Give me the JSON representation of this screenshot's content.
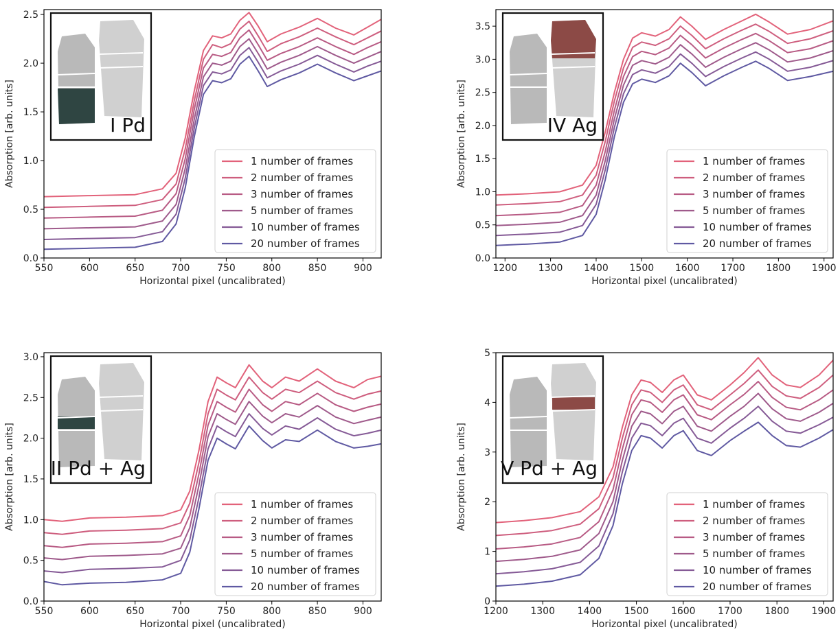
{
  "colors": {
    "series": [
      "#e2627a",
      "#ce5e7e",
      "#b85b84",
      "#9f5a8b",
      "#855a96",
      "#5f59a2"
    ],
    "pd_fill": "#2f4542",
    "ag_fill": "#8c4a46",
    "sample_gray": "#b9b9b9",
    "sample_gray_light": "#d0d0d0"
  },
  "chart_data": [
    {
      "type": "line",
      "inset_label": "I Pd",
      "inset_icon": "pd-sample-icon",
      "xlabel": "Horizontal pixel (uncalibrated)",
      "ylabel": "Absorption [arb. units]",
      "xlim": [
        550,
        920
      ],
      "ylim": [
        0,
        2.55
      ],
      "xticks": [
        "550",
        "600",
        "650",
        "700",
        "750",
        "800",
        "850",
        "900"
      ],
      "yticks": [
        "0.0",
        "0.5",
        "1.0",
        "1.5",
        "2.0",
        "2.5"
      ],
      "legend_position": "lower-right",
      "legend": [
        "1 number of frames",
        "2 number of frames",
        "3 number of frames",
        "5 number of frames",
        "10 number of frames",
        "20 number of frames"
      ],
      "series_x": [
        550,
        600,
        650,
        680,
        695,
        705,
        715,
        725,
        735,
        745,
        755,
        765,
        775,
        785,
        795,
        810,
        830,
        850,
        870,
        890,
        905,
        920
      ],
      "series": [
        {
          "name": "1 number of frames",
          "values": [
            0.63,
            0.64,
            0.65,
            0.71,
            0.87,
            1.23,
            1.72,
            2.13,
            2.28,
            2.26,
            2.3,
            2.44,
            2.52,
            2.38,
            2.22,
            2.3,
            2.37,
            2.46,
            2.36,
            2.29,
            2.37,
            2.45
          ]
        },
        {
          "name": "2 number of frames",
          "values": [
            0.52,
            0.53,
            0.54,
            0.6,
            0.76,
            1.12,
            1.62,
            2.04,
            2.19,
            2.16,
            2.2,
            2.35,
            2.43,
            2.28,
            2.12,
            2.2,
            2.27,
            2.36,
            2.27,
            2.19,
            2.26,
            2.33
          ]
        },
        {
          "name": "3 number of frames",
          "values": [
            0.41,
            0.42,
            0.43,
            0.49,
            0.66,
            1.02,
            1.53,
            1.95,
            2.09,
            2.07,
            2.11,
            2.26,
            2.34,
            2.19,
            2.03,
            2.1,
            2.17,
            2.26,
            2.17,
            2.09,
            2.16,
            2.22
          ]
        },
        {
          "name": "5 number of frames",
          "values": [
            0.3,
            0.31,
            0.32,
            0.38,
            0.55,
            0.92,
            1.43,
            1.86,
            2.0,
            1.98,
            2.02,
            2.17,
            2.25,
            2.1,
            1.94,
            2.01,
            2.08,
            2.17,
            2.08,
            2.0,
            2.06,
            2.12
          ]
        },
        {
          "name": "10 number of frames",
          "values": [
            0.19,
            0.2,
            0.21,
            0.27,
            0.45,
            0.82,
            1.34,
            1.77,
            1.91,
            1.89,
            1.93,
            2.08,
            2.16,
            2.01,
            1.85,
            1.92,
            1.99,
            2.08,
            1.99,
            1.91,
            1.97,
            2.02
          ]
        },
        {
          "name": "20 number of frames",
          "values": [
            0.09,
            0.1,
            0.11,
            0.17,
            0.35,
            0.72,
            1.25,
            1.68,
            1.82,
            1.8,
            1.84,
            1.99,
            2.07,
            1.92,
            1.76,
            1.83,
            1.9,
            1.99,
            1.9,
            1.82,
            1.87,
            1.92
          ]
        }
      ]
    },
    {
      "type": "line",
      "inset_label": "IV Ag",
      "inset_icon": "ag-sample-icon",
      "xlabel": "Horizontal pixel (uncalibrated)",
      "ylabel": "Absorption [arb. units]",
      "xlim": [
        1180,
        1920
      ],
      "ylim": [
        0,
        3.75
      ],
      "xticks": [
        "1200",
        "1300",
        "1400",
        "1500",
        "1600",
        "1700",
        "1800",
        "1900"
      ],
      "yticks": [
        "0.0",
        "0.5",
        "1.0",
        "1.5",
        "2.0",
        "2.5",
        "3.0",
        "3.5"
      ],
      "legend_position": "lower-right",
      "legend": [
        "1 number of frames",
        "2 number of frames",
        "3 number of frames",
        "5 number of frames",
        "10 number of frames",
        "20 number of frames"
      ],
      "series_x": [
        1180,
        1250,
        1320,
        1370,
        1400,
        1420,
        1440,
        1460,
        1480,
        1500,
        1530,
        1560,
        1585,
        1610,
        1640,
        1680,
        1720,
        1750,
        1780,
        1820,
        1870,
        1920
      ],
      "series": [
        {
          "name": "1 number of frames",
          "values": [
            0.95,
            0.97,
            1.0,
            1.1,
            1.4,
            1.9,
            2.5,
            3.0,
            3.32,
            3.4,
            3.35,
            3.45,
            3.64,
            3.5,
            3.3,
            3.45,
            3.58,
            3.68,
            3.56,
            3.38,
            3.45,
            3.58
          ]
        },
        {
          "name": "2 number of frames",
          "values": [
            0.8,
            0.82,
            0.85,
            0.95,
            1.25,
            1.76,
            2.37,
            2.87,
            3.18,
            3.26,
            3.21,
            3.31,
            3.5,
            3.36,
            3.16,
            3.31,
            3.44,
            3.53,
            3.42,
            3.24,
            3.31,
            3.43
          ]
        },
        {
          "name": "3 number of frames",
          "values": [
            0.64,
            0.66,
            0.69,
            0.79,
            1.1,
            1.61,
            2.23,
            2.74,
            3.04,
            3.12,
            3.07,
            3.17,
            3.36,
            3.22,
            3.02,
            3.17,
            3.3,
            3.39,
            3.28,
            3.1,
            3.16,
            3.28
          ]
        },
        {
          "name": "5 number of frames",
          "values": [
            0.49,
            0.51,
            0.54,
            0.64,
            0.95,
            1.47,
            2.1,
            2.61,
            2.91,
            2.98,
            2.93,
            3.03,
            3.22,
            3.08,
            2.88,
            3.03,
            3.16,
            3.25,
            3.14,
            2.96,
            3.02,
            3.13
          ]
        },
        {
          "name": "10 number of frames",
          "values": [
            0.34,
            0.36,
            0.39,
            0.49,
            0.81,
            1.33,
            1.97,
            2.48,
            2.77,
            2.84,
            2.79,
            2.89,
            3.08,
            2.94,
            2.74,
            2.89,
            3.02,
            3.11,
            3.0,
            2.82,
            2.88,
            2.98
          ]
        },
        {
          "name": "20 number of frames",
          "values": [
            0.19,
            0.21,
            0.24,
            0.34,
            0.66,
            1.18,
            1.83,
            2.35,
            2.63,
            2.7,
            2.65,
            2.75,
            2.94,
            2.8,
            2.6,
            2.75,
            2.88,
            2.97,
            2.86,
            2.68,
            2.74,
            2.82
          ]
        }
      ]
    },
    {
      "type": "line",
      "inset_label": "II Pd + Ag",
      "inset_icon": "pd-ag-sample-icon",
      "xlabel": "Horizontal pixel (uncalibrated)",
      "ylabel": "Absorption [arb. units]",
      "xlim": [
        550,
        920
      ],
      "ylim": [
        0,
        3.05
      ],
      "xticks": [
        "550",
        "600",
        "650",
        "700",
        "750",
        "800",
        "850",
        "900"
      ],
      "yticks": [
        "0.0",
        "0.5",
        "1.0",
        "1.5",
        "2.0",
        "2.5",
        "3.0"
      ],
      "legend_position": "lower-right",
      "legend": [
        "1 number of frames",
        "2 number of frames",
        "3 number of frames",
        "5 number of frames",
        "10 number of frames",
        "20 number of frames"
      ],
      "series_x": [
        550,
        570,
        600,
        640,
        680,
        700,
        710,
        720,
        730,
        740,
        750,
        760,
        775,
        790,
        800,
        815,
        830,
        850,
        870,
        890,
        905,
        920
      ],
      "series": [
        {
          "name": "1 number of frames",
          "values": [
            1.0,
            0.98,
            1.02,
            1.03,
            1.05,
            1.12,
            1.35,
            1.85,
            2.45,
            2.75,
            2.68,
            2.62,
            2.9,
            2.7,
            2.62,
            2.75,
            2.7,
            2.85,
            2.7,
            2.62,
            2.72,
            2.76
          ]
        },
        {
          "name": "2 number of frames",
          "values": [
            0.84,
            0.82,
            0.86,
            0.87,
            0.89,
            0.96,
            1.2,
            1.7,
            2.3,
            2.6,
            2.53,
            2.47,
            2.75,
            2.56,
            2.48,
            2.6,
            2.56,
            2.7,
            2.56,
            2.48,
            2.54,
            2.58
          ]
        },
        {
          "name": "3 number of frames",
          "values": [
            0.68,
            0.66,
            0.7,
            0.71,
            0.73,
            0.8,
            1.05,
            1.56,
            2.16,
            2.45,
            2.38,
            2.32,
            2.6,
            2.41,
            2.33,
            2.45,
            2.41,
            2.55,
            2.41,
            2.33,
            2.38,
            2.42
          ]
        },
        {
          "name": "5 number of frames",
          "values": [
            0.53,
            0.51,
            0.55,
            0.56,
            0.58,
            0.65,
            0.9,
            1.42,
            2.02,
            2.3,
            2.23,
            2.17,
            2.45,
            2.27,
            2.19,
            2.3,
            2.26,
            2.4,
            2.26,
            2.18,
            2.22,
            2.26
          ]
        },
        {
          "name": "10 number of frames",
          "values": [
            0.37,
            0.35,
            0.39,
            0.4,
            0.42,
            0.5,
            0.75,
            1.27,
            1.87,
            2.15,
            2.08,
            2.02,
            2.3,
            2.12,
            2.04,
            2.15,
            2.11,
            2.25,
            2.11,
            2.03,
            2.06,
            2.1
          ]
        },
        {
          "name": "20 number of frames",
          "values": [
            0.24,
            0.2,
            0.22,
            0.23,
            0.26,
            0.34,
            0.6,
            1.13,
            1.73,
            2.0,
            1.93,
            1.87,
            2.15,
            1.97,
            1.88,
            1.98,
            1.96,
            2.1,
            1.96,
            1.88,
            1.9,
            1.93
          ]
        }
      ]
    },
    {
      "type": "line",
      "inset_label": "V Pd + Ag",
      "inset_icon": "pd-ag-sample-icon",
      "xlabel": "Horizontal pixel (uncalibrated)",
      "ylabel": "Absorption [arb. units]",
      "xlim": [
        1200,
        1920
      ],
      "ylim": [
        0,
        5
      ],
      "xticks": [
        "1200",
        "1300",
        "1400",
        "1500",
        "1600",
        "1700",
        "1800",
        "1900"
      ],
      "yticks": [
        "0",
        "1",
        "2",
        "3",
        "4",
        "5"
      ],
      "legend_position": "lower-right",
      "legend": [
        "1 number of frames",
        "2 number of frames",
        "3 number of frames",
        "5 number of frames",
        "10 number of frames",
        "20 number of frames"
      ],
      "series_x": [
        1200,
        1260,
        1320,
        1380,
        1420,
        1450,
        1470,
        1490,
        1510,
        1530,
        1555,
        1580,
        1600,
        1630,
        1660,
        1700,
        1730,
        1760,
        1790,
        1820,
        1850,
        1890,
        1920
      ],
      "series": [
        {
          "name": "1 number of frames",
          "values": [
            1.58,
            1.62,
            1.68,
            1.8,
            2.1,
            2.7,
            3.5,
            4.15,
            4.45,
            4.4,
            4.2,
            4.45,
            4.55,
            4.15,
            4.05,
            4.35,
            4.6,
            4.9,
            4.55,
            4.35,
            4.3,
            4.55,
            4.85
          ]
        },
        {
          "name": "2 number of frames",
          "values": [
            1.32,
            1.36,
            1.42,
            1.55,
            1.86,
            2.48,
            3.28,
            3.95,
            4.25,
            4.2,
            4.0,
            4.25,
            4.35,
            3.95,
            3.85,
            4.15,
            4.38,
            4.65,
            4.32,
            4.13,
            4.08,
            4.3,
            4.55
          ]
        },
        {
          "name": "3 number of frames",
          "values": [
            1.05,
            1.09,
            1.15,
            1.28,
            1.6,
            2.24,
            3.06,
            3.75,
            4.05,
            4.0,
            3.8,
            4.05,
            4.15,
            3.75,
            3.65,
            3.95,
            4.16,
            4.42,
            4.1,
            3.9,
            3.85,
            4.05,
            4.25
          ]
        },
        {
          "name": "5 number of frames",
          "values": [
            0.8,
            0.84,
            0.9,
            1.03,
            1.36,
            2.0,
            2.83,
            3.52,
            3.82,
            3.77,
            3.57,
            3.82,
            3.92,
            3.52,
            3.42,
            3.72,
            3.92,
            4.18,
            3.87,
            3.67,
            3.62,
            3.8,
            3.98
          ]
        },
        {
          "name": "10 number of frames",
          "values": [
            0.55,
            0.59,
            0.65,
            0.78,
            1.11,
            1.76,
            2.6,
            3.28,
            3.58,
            3.53,
            3.33,
            3.58,
            3.68,
            3.28,
            3.18,
            3.48,
            3.68,
            3.92,
            3.62,
            3.42,
            3.38,
            3.55,
            3.7
          ]
        },
        {
          "name": "20 number of frames",
          "values": [
            0.3,
            0.34,
            0.4,
            0.53,
            0.86,
            1.52,
            2.36,
            3.03,
            3.33,
            3.28,
            3.08,
            3.33,
            3.43,
            3.03,
            2.93,
            3.23,
            3.42,
            3.6,
            3.33,
            3.13,
            3.1,
            3.28,
            3.45
          ]
        }
      ]
    }
  ]
}
